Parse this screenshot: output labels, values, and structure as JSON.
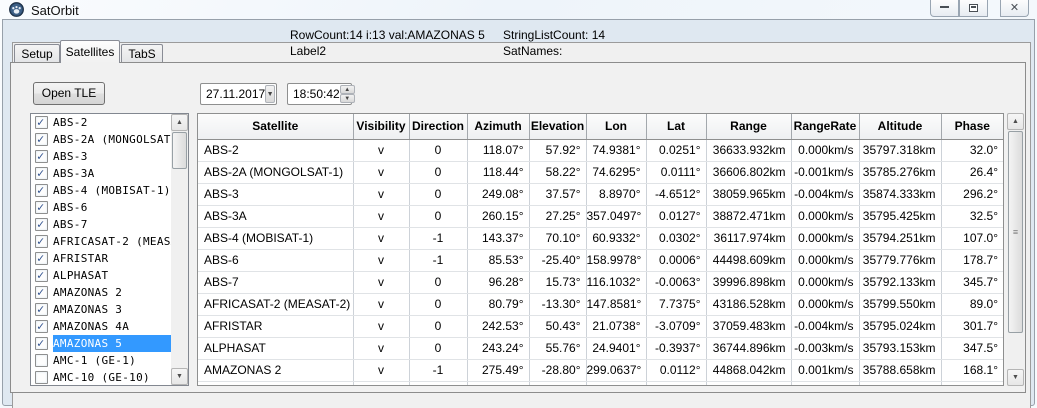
{
  "window": {
    "title": "SatOrbit",
    "icons": {
      "app": "paw-icon",
      "minimize": "minimize-icon",
      "restore": "restore-icon",
      "close": "close-icon"
    }
  },
  "status": {
    "row_count": "RowCount:14 i:13 val:AMAZONAS 5",
    "label2": "Label2",
    "string_list_count": "StringListCount: 14",
    "sat_names": "SatNames:"
  },
  "tabs": [
    {
      "label": "Setup",
      "active": false
    },
    {
      "label": "Satellites",
      "active": true
    },
    {
      "label": "TabS",
      "active": false
    }
  ],
  "toolbar": {
    "open_tle_label": "Open TLE",
    "date_value": "27.11.2017",
    "time_value": "18:50:42"
  },
  "satellite_list": {
    "items": [
      {
        "label": "ABS-2",
        "checked": true,
        "selected": false
      },
      {
        "label": "ABS-2A (MONGOLSAT-1)",
        "checked": true,
        "selected": false
      },
      {
        "label": "ABS-3",
        "checked": true,
        "selected": false
      },
      {
        "label": "ABS-3A",
        "checked": true,
        "selected": false
      },
      {
        "label": "ABS-4 (MOBISAT-1)",
        "checked": true,
        "selected": false
      },
      {
        "label": "ABS-6",
        "checked": true,
        "selected": false
      },
      {
        "label": "ABS-7",
        "checked": true,
        "selected": false
      },
      {
        "label": "AFRICASAT-2 (MEASAT-2)",
        "checked": true,
        "selected": false
      },
      {
        "label": "AFRISTAR",
        "checked": true,
        "selected": false
      },
      {
        "label": "ALPHASAT",
        "checked": true,
        "selected": false
      },
      {
        "label": "AMAZONAS 2",
        "checked": true,
        "selected": false
      },
      {
        "label": "AMAZONAS 3",
        "checked": true,
        "selected": false
      },
      {
        "label": "AMAZONAS 4A",
        "checked": true,
        "selected": false
      },
      {
        "label": "AMAZONAS 5",
        "checked": true,
        "selected": true
      },
      {
        "label": "AMC-1 (GE-1)",
        "checked": false,
        "selected": false
      },
      {
        "label": "AMC-10 (GE-10)",
        "checked": false,
        "selected": false
      }
    ]
  },
  "table": {
    "columns": [
      "Satellite",
      "Visibility",
      "Direction",
      "Azimuth",
      "Elevation",
      "Lon",
      "Lat",
      "Range",
      "RangeRate",
      "Altitude",
      "Phase"
    ],
    "rows": [
      [
        "ABS-2",
        "v",
        "0",
        "118.07°",
        "57.92°",
        "74.9381°",
        "0.0251°",
        "36633.932km",
        "0.000km/s",
        "35797.318km",
        "32.0°"
      ],
      [
        "ABS-2A (MONGOLSAT-1)",
        "v",
        "0",
        "118.44°",
        "58.22°",
        "74.6295°",
        "0.0111°",
        "36606.802km",
        "-0.001km/s",
        "35785.276km",
        "26.4°"
      ],
      [
        "ABS-3",
        "v",
        "0",
        "249.08°",
        "37.57°",
        "8.8970°",
        "-4.6512°",
        "38059.965km",
        "-0.004km/s",
        "35874.333km",
        "296.2°"
      ],
      [
        "ABS-3A",
        "v",
        "0",
        "260.15°",
        "27.25°",
        "357.0497°",
        "0.0127°",
        "38872.471km",
        "0.000km/s",
        "35795.425km",
        "32.5°"
      ],
      [
        "ABS-4 (MOBISAT-1)",
        "v",
        "-1",
        "143.37°",
        "70.10°",
        "60.9332°",
        "0.0302°",
        "36117.974km",
        "0.000km/s",
        "35794.251km",
        "107.0°"
      ],
      [
        "ABS-6",
        "v",
        "-1",
        "85.53°",
        "-25.40°",
        "158.9978°",
        "0.0006°",
        "44498.609km",
        "0.000km/s",
        "35779.776km",
        "178.7°"
      ],
      [
        "ABS-7",
        "v",
        "0",
        "96.28°",
        "15.73°",
        "116.1032°",
        "-0.0063°",
        "39996.898km",
        "0.000km/s",
        "35792.133km",
        "345.7°"
      ],
      [
        "AFRICASAT-2 (MEASAT-2)",
        "v",
        "0",
        "80.79°",
        "-13.30°",
        "147.8581°",
        "7.7375°",
        "43186.528km",
        "0.000km/s",
        "35799.550km",
        "89.0°"
      ],
      [
        "AFRISTAR",
        "v",
        "0",
        "242.53°",
        "50.43°",
        "21.0738°",
        "-3.0709°",
        "37059.483km",
        "-0.004km/s",
        "35795.024km",
        "301.7°"
      ],
      [
        "ALPHASAT",
        "v",
        "0",
        "243.24°",
        "55.76°",
        "24.9401°",
        "-0.3937°",
        "36744.896km",
        "-0.003km/s",
        "35793.153km",
        "347.5°"
      ],
      [
        "AMAZONAS 2",
        "v",
        "-1",
        "275.49°",
        "-28.80°",
        "299.0637°",
        "0.0112°",
        "44868.042km",
        "0.001km/s",
        "35788.658km",
        "168.1°"
      ]
    ]
  },
  "colors": {
    "selection": "#3399ff",
    "client_background": "#f0f0f0",
    "grid_background": "#ffffff"
  }
}
